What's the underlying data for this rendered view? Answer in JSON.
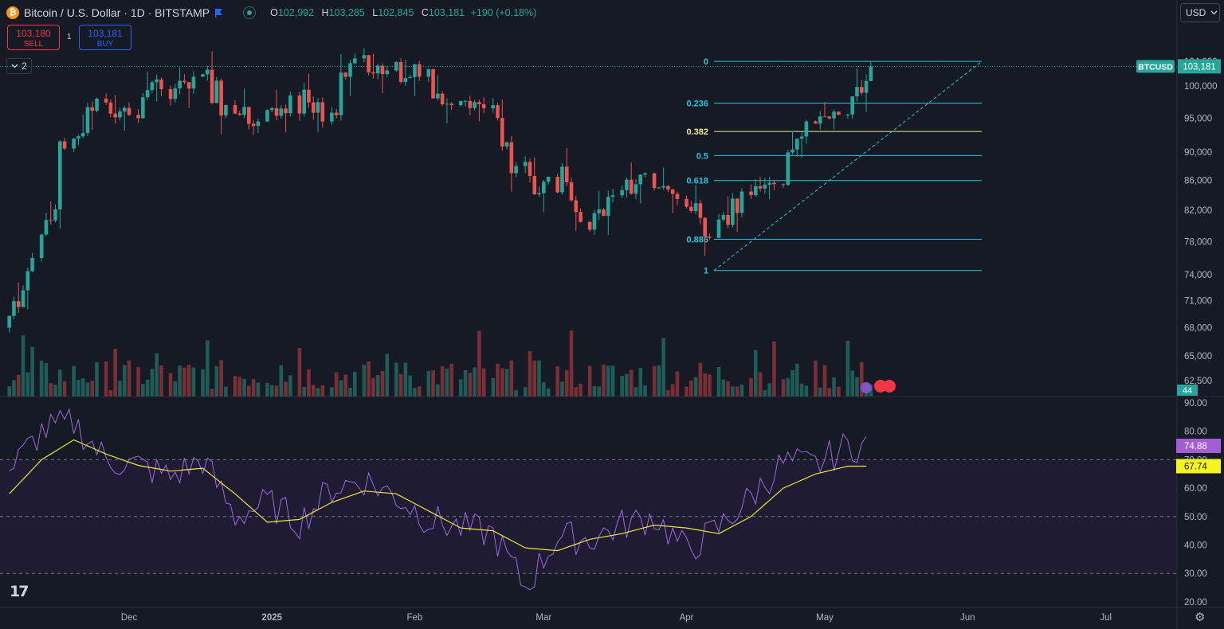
{
  "header": {
    "coin_symbol": "₿",
    "title": "Bitcoin / U.S. Dollar · 1D · BITSTAMP",
    "open_label": "O",
    "open": "102,992",
    "high_label": "H",
    "high": "103,285",
    "low_label": "L",
    "low": "102,845",
    "close_label": "C",
    "close": "103,181",
    "change": "+190 (+0.18%)"
  },
  "trade": {
    "sell_price": "103,180",
    "sell_label": "SELL",
    "spread": "1",
    "buy_price": "103,181",
    "buy_label": "BUY"
  },
  "indicators_collapse": {
    "count": "2"
  },
  "currency": {
    "selected": "USD"
  },
  "icons": [
    "bitcoin-icon",
    "flag-icon",
    "market-status-icon",
    "chevron-down-icon",
    "tradingview-logo-icon",
    "settings-icon",
    "lightning-icon",
    "us-flag-icon"
  ],
  "colors": {
    "up": "#26a69a",
    "down": "#ef5350",
    "fib_line": "#26c6da",
    "fib_382": "#f0e68c",
    "rsi": "#9c6ade",
    "rsi_ma": "#e8e83a",
    "rsi_badge": "#a35ed4",
    "ma_badge": "#f5f51e",
    "background": "#161a25"
  },
  "chart_data": [
    {
      "type": "candlestick",
      "title": "Bitcoin / U.S. Dollar · 1D · BITSTAMP",
      "symbol_tag": "BTCUSD",
      "last_price": "103,181",
      "y_ticks": [
        "104,000",
        "100,000",
        "95,000",
        "90,000",
        "86,000",
        "82,000",
        "78,000",
        "74,000",
        "71,000",
        "68,000",
        "65,000",
        "62,500"
      ],
      "log_scale": true,
      "x_ticks": [
        "Dec",
        "2025",
        "Feb",
        "Mar",
        "Apr",
        "May",
        "Jun",
        "Jul"
      ],
      "ohlc_approx_weekly": [
        {
          "date": "2024-11-05",
          "open": 68000,
          "high": 77500,
          "low": 67500,
          "close": 76000
        },
        {
          "date": "2024-11-12",
          "open": 76000,
          "high": 93000,
          "low": 75500,
          "close": 90500
        },
        {
          "date": "2024-11-19",
          "open": 90500,
          "high": 99500,
          "low": 90000,
          "close": 98000
        },
        {
          "date": "2024-11-26",
          "open": 98000,
          "high": 98800,
          "low": 90800,
          "close": 95500
        },
        {
          "date": "2024-12-03",
          "open": 95500,
          "high": 103500,
          "low": 92000,
          "close": 99500
        },
        {
          "date": "2024-12-10",
          "open": 99500,
          "high": 103000,
          "low": 94500,
          "close": 101500
        },
        {
          "date": "2024-12-17",
          "open": 101500,
          "high": 108300,
          "low": 92500,
          "close": 97000
        },
        {
          "date": "2024-12-24",
          "open": 97000,
          "high": 99800,
          "low": 92500,
          "close": 94500
        },
        {
          "date": "2024-12-31",
          "open": 94500,
          "high": 102500,
          "low": 91500,
          "close": 98500
        },
        {
          "date": "2025-01-07",
          "open": 98500,
          "high": 102000,
          "low": 89500,
          "close": 94500
        },
        {
          "date": "2025-01-14",
          "open": 94500,
          "high": 106500,
          "low": 94000,
          "close": 104500
        },
        {
          "date": "2025-01-21",
          "open": 104500,
          "high": 109000,
          "low": 98000,
          "close": 102500
        },
        {
          "date": "2025-01-28",
          "open": 102500,
          "high": 106500,
          "low": 96000,
          "close": 101500
        },
        {
          "date": "2025-02-04",
          "open": 101500,
          "high": 102500,
          "low": 91500,
          "close": 97000
        },
        {
          "date": "2025-02-11",
          "open": 97000,
          "high": 98500,
          "low": 94500,
          "close": 96500
        },
        {
          "date": "2025-02-18",
          "open": 96500,
          "high": 99000,
          "low": 84500,
          "close": 88000
        },
        {
          "date": "2025-02-25",
          "open": 88000,
          "high": 95000,
          "low": 78200,
          "close": 86500
        },
        {
          "date": "2025-03-04",
          "open": 86500,
          "high": 92500,
          "low": 76600,
          "close": 80500
        },
        {
          "date": "2025-03-11",
          "open": 80500,
          "high": 85500,
          "low": 78500,
          "close": 84000
        },
        {
          "date": "2025-03-18",
          "open": 84000,
          "high": 88500,
          "low": 82500,
          "close": 87000
        },
        {
          "date": "2025-03-25",
          "open": 87000,
          "high": 88700,
          "low": 81500,
          "close": 83500
        },
        {
          "date": "2025-04-01",
          "open": 83500,
          "high": 85500,
          "low": 74500,
          "close": 78500
        },
        {
          "date": "2025-04-08",
          "open": 78500,
          "high": 86500,
          "low": 76200,
          "close": 84500
        },
        {
          "date": "2025-04-15",
          "open": 84500,
          "high": 86500,
          "low": 83500,
          "close": 85500
        },
        {
          "date": "2025-04-22",
          "open": 85500,
          "high": 95800,
          "low": 85000,
          "close": 94500
        },
        {
          "date": "2025-04-29",
          "open": 94500,
          "high": 97500,
          "low": 93300,
          "close": 95500
        },
        {
          "date": "2025-05-06",
          "open": 95500,
          "high": 104000,
          "low": 94000,
          "close": 103181
        }
      ],
      "fibonacci": {
        "levels": [
          {
            "label": "0",
            "price": 104000
          },
          {
            "label": "0.236",
            "price": 97300
          },
          {
            "label": "0.382",
            "price": 93000
          },
          {
            "label": "0.5",
            "price": 89500
          },
          {
            "label": "0.618",
            "price": 86000
          },
          {
            "label": "0.886",
            "price": 78300
          },
          {
            "label": "1",
            "price": 74500
          }
        ]
      }
    },
    {
      "type": "line",
      "name": "RSI",
      "y_ticks": [
        "90.00",
        "80.00",
        "70.00",
        "60.00",
        "50.00",
        "40.00",
        "30.00",
        "20.00"
      ],
      "bands": [
        30,
        50,
        70
      ],
      "rsi_last": "74.88",
      "ma_last": "67.74",
      "left_badge": "44",
      "rsi_weekly": [
        {
          "date": "2024-11-05",
          "value": 66
        },
        {
          "date": "2024-11-12",
          "value": 80
        },
        {
          "date": "2024-11-19",
          "value": 83
        },
        {
          "date": "2024-11-26",
          "value": 70
        },
        {
          "date": "2024-12-03",
          "value": 68
        },
        {
          "date": "2024-12-10",
          "value": 64
        },
        {
          "date": "2024-12-17",
          "value": 70
        },
        {
          "date": "2024-12-24",
          "value": 50
        },
        {
          "date": "2024-12-31",
          "value": 55
        },
        {
          "date": "2025-01-07",
          "value": 48
        },
        {
          "date": "2025-01-14",
          "value": 60
        },
        {
          "date": "2025-01-21",
          "value": 63
        },
        {
          "date": "2025-01-28",
          "value": 57
        },
        {
          "date": "2025-02-04",
          "value": 49
        },
        {
          "date": "2025-02-11",
          "value": 46
        },
        {
          "date": "2025-02-18",
          "value": 44
        },
        {
          "date": "2025-02-25",
          "value": 25
        },
        {
          "date": "2025-03-04",
          "value": 43
        },
        {
          "date": "2025-03-11",
          "value": 42
        },
        {
          "date": "2025-03-18",
          "value": 47
        },
        {
          "date": "2025-03-25",
          "value": 50
        },
        {
          "date": "2025-04-01",
          "value": 38
        },
        {
          "date": "2025-04-08",
          "value": 46
        },
        {
          "date": "2025-04-15",
          "value": 57
        },
        {
          "date": "2025-04-22",
          "value": 69
        },
        {
          "date": "2025-04-29",
          "value": 68
        },
        {
          "date": "2025-05-06",
          "value": 74.88
        }
      ],
      "ma_weekly": [
        {
          "date": "2024-11-05",
          "value": 58
        },
        {
          "date": "2024-11-12",
          "value": 70
        },
        {
          "date": "2024-11-19",
          "value": 77
        },
        {
          "date": "2024-11-26",
          "value": 72
        },
        {
          "date": "2024-12-03",
          "value": 68
        },
        {
          "date": "2024-12-10",
          "value": 66
        },
        {
          "date": "2024-12-17",
          "value": 67
        },
        {
          "date": "2024-12-24",
          "value": 58
        },
        {
          "date": "2024-12-31",
          "value": 48
        },
        {
          "date": "2025-01-07",
          "value": 49
        },
        {
          "date": "2025-01-14",
          "value": 55
        },
        {
          "date": "2025-01-21",
          "value": 59
        },
        {
          "date": "2025-01-28",
          "value": 58
        },
        {
          "date": "2025-02-04",
          "value": 52
        },
        {
          "date": "2025-02-11",
          "value": 46
        },
        {
          "date": "2025-02-18",
          "value": 45
        },
        {
          "date": "2025-02-25",
          "value": 39
        },
        {
          "date": "2025-03-04",
          "value": 38
        },
        {
          "date": "2025-03-11",
          "value": 42
        },
        {
          "date": "2025-03-18",
          "value": 44
        },
        {
          "date": "2025-03-25",
          "value": 47
        },
        {
          "date": "2025-04-01",
          "value": 46
        },
        {
          "date": "2025-04-08",
          "value": 44
        },
        {
          "date": "2025-04-15",
          "value": 50
        },
        {
          "date": "2025-04-22",
          "value": 60
        },
        {
          "date": "2025-04-29",
          "value": 65
        },
        {
          "date": "2025-05-06",
          "value": 67.74
        }
      ]
    }
  ]
}
